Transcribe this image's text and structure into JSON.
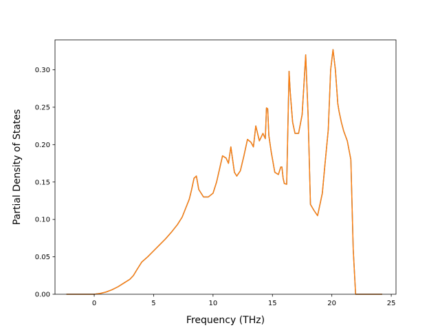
{
  "chart_data": {
    "type": "line",
    "title": "",
    "xlabel": "Frequency (THz)",
    "ylabel": "Partial Density of States",
    "xlim": [
      -3.3,
      25.4
    ],
    "ylim": [
      0.0,
      0.34
    ],
    "xticks": [
      0,
      5,
      10,
      15,
      20,
      25
    ],
    "yticks": [
      0.0,
      0.05,
      0.1,
      0.15,
      0.2,
      0.25,
      0.3
    ],
    "xtick_labels": [
      "0",
      "5",
      "10",
      "15",
      "20",
      "25"
    ],
    "ytick_labels": [
      "0.00",
      "0.05",
      "0.10",
      "0.15",
      "0.20",
      "0.25",
      "0.30"
    ],
    "grid": false,
    "legend": "none",
    "series": [
      {
        "color": "#1f77b4",
        "x": [
          -2.3,
          -1.0,
          0.0,
          0.5,
          1.0,
          1.5,
          2.0,
          2.5,
          3.0,
          3.3,
          3.6,
          4.0,
          4.5,
          5.0,
          5.5,
          6.0,
          6.5,
          7.0,
          7.4,
          7.7,
          8.0,
          8.2,
          8.4,
          8.6,
          8.8,
          9.2,
          9.6,
          10.0,
          10.3,
          10.8,
          11.1,
          11.3,
          11.5,
          11.8,
          12.0,
          12.3,
          12.6,
          12.9,
          13.2,
          13.4,
          13.6,
          13.9,
          14.2,
          14.4,
          14.5,
          14.6,
          14.7,
          14.9,
          15.2,
          15.5,
          15.7,
          15.8,
          15.9,
          16.0,
          16.2,
          16.4,
          16.5,
          16.7,
          16.9,
          17.2,
          17.5,
          17.8,
          18.0,
          18.2,
          18.5,
          18.8,
          19.0,
          19.2,
          19.4,
          19.7,
          19.9,
          20.1,
          20.3,
          20.5,
          20.6,
          20.8,
          21.0,
          21.3,
          21.6,
          21.8,
          22.0,
          22.2,
          22.5,
          23.0,
          23.5,
          24.2
        ],
        "y": [
          0.0,
          0.0,
          0.0,
          0.001,
          0.003,
          0.006,
          0.01,
          0.015,
          0.02,
          0.025,
          0.033,
          0.043,
          0.05,
          0.058,
          0.066,
          0.074,
          0.083,
          0.093,
          0.103,
          0.115,
          0.127,
          0.14,
          0.155,
          0.158,
          0.14,
          0.13,
          0.13,
          0.135,
          0.15,
          0.185,
          0.182,
          0.175,
          0.197,
          0.163,
          0.158,
          0.165,
          0.185,
          0.207,
          0.203,
          0.197,
          0.225,
          0.205,
          0.215,
          0.208,
          0.249,
          0.248,
          0.212,
          0.19,
          0.163,
          0.16,
          0.17,
          0.17,
          0.155,
          0.148,
          0.147,
          0.298,
          0.27,
          0.23,
          0.215,
          0.215,
          0.24,
          0.32,
          0.24,
          0.12,
          0.112,
          0.105,
          0.12,
          0.135,
          0.17,
          0.22,
          0.3,
          0.327,
          0.3,
          0.255,
          0.245,
          0.23,
          0.218,
          0.205,
          0.18,
          0.06,
          0.0,
          0.0,
          0.0,
          0.0,
          0.0,
          0.0
        ]
      },
      {
        "color": "#ff7f0e",
        "x": [
          -2.3,
          -1.0,
          0.0,
          0.5,
          1.0,
          1.5,
          2.0,
          2.5,
          3.0,
          3.3,
          3.6,
          4.0,
          4.5,
          5.0,
          5.5,
          6.0,
          6.5,
          7.0,
          7.4,
          7.7,
          8.0,
          8.2,
          8.4,
          8.6,
          8.8,
          9.2,
          9.6,
          10.0,
          10.3,
          10.8,
          11.1,
          11.3,
          11.5,
          11.8,
          12.0,
          12.3,
          12.6,
          12.9,
          13.2,
          13.4,
          13.6,
          13.9,
          14.2,
          14.4,
          14.5,
          14.6,
          14.7,
          14.9,
          15.2,
          15.5,
          15.7,
          15.8,
          15.9,
          16.0,
          16.2,
          16.4,
          16.5,
          16.7,
          16.9,
          17.2,
          17.5,
          17.8,
          18.0,
          18.2,
          18.5,
          18.8,
          19.0,
          19.2,
          19.4,
          19.7,
          19.9,
          20.1,
          20.3,
          20.5,
          20.6,
          20.8,
          21.0,
          21.3,
          21.6,
          21.8,
          22.0,
          22.2,
          22.5,
          23.0,
          23.5,
          24.2
        ],
        "y": [
          0.0,
          0.0,
          0.0,
          0.001,
          0.003,
          0.006,
          0.01,
          0.015,
          0.02,
          0.025,
          0.033,
          0.043,
          0.05,
          0.058,
          0.066,
          0.074,
          0.083,
          0.093,
          0.103,
          0.115,
          0.127,
          0.14,
          0.155,
          0.158,
          0.14,
          0.13,
          0.13,
          0.135,
          0.15,
          0.185,
          0.182,
          0.175,
          0.197,
          0.163,
          0.158,
          0.165,
          0.185,
          0.207,
          0.203,
          0.197,
          0.225,
          0.205,
          0.215,
          0.208,
          0.249,
          0.248,
          0.212,
          0.19,
          0.163,
          0.16,
          0.17,
          0.17,
          0.155,
          0.148,
          0.147,
          0.298,
          0.27,
          0.23,
          0.215,
          0.215,
          0.24,
          0.32,
          0.24,
          0.12,
          0.112,
          0.105,
          0.12,
          0.135,
          0.17,
          0.22,
          0.3,
          0.327,
          0.3,
          0.255,
          0.245,
          0.23,
          0.218,
          0.205,
          0.18,
          0.06,
          0.0,
          0.0,
          0.0,
          0.0,
          0.0,
          0.0
        ]
      }
    ]
  }
}
